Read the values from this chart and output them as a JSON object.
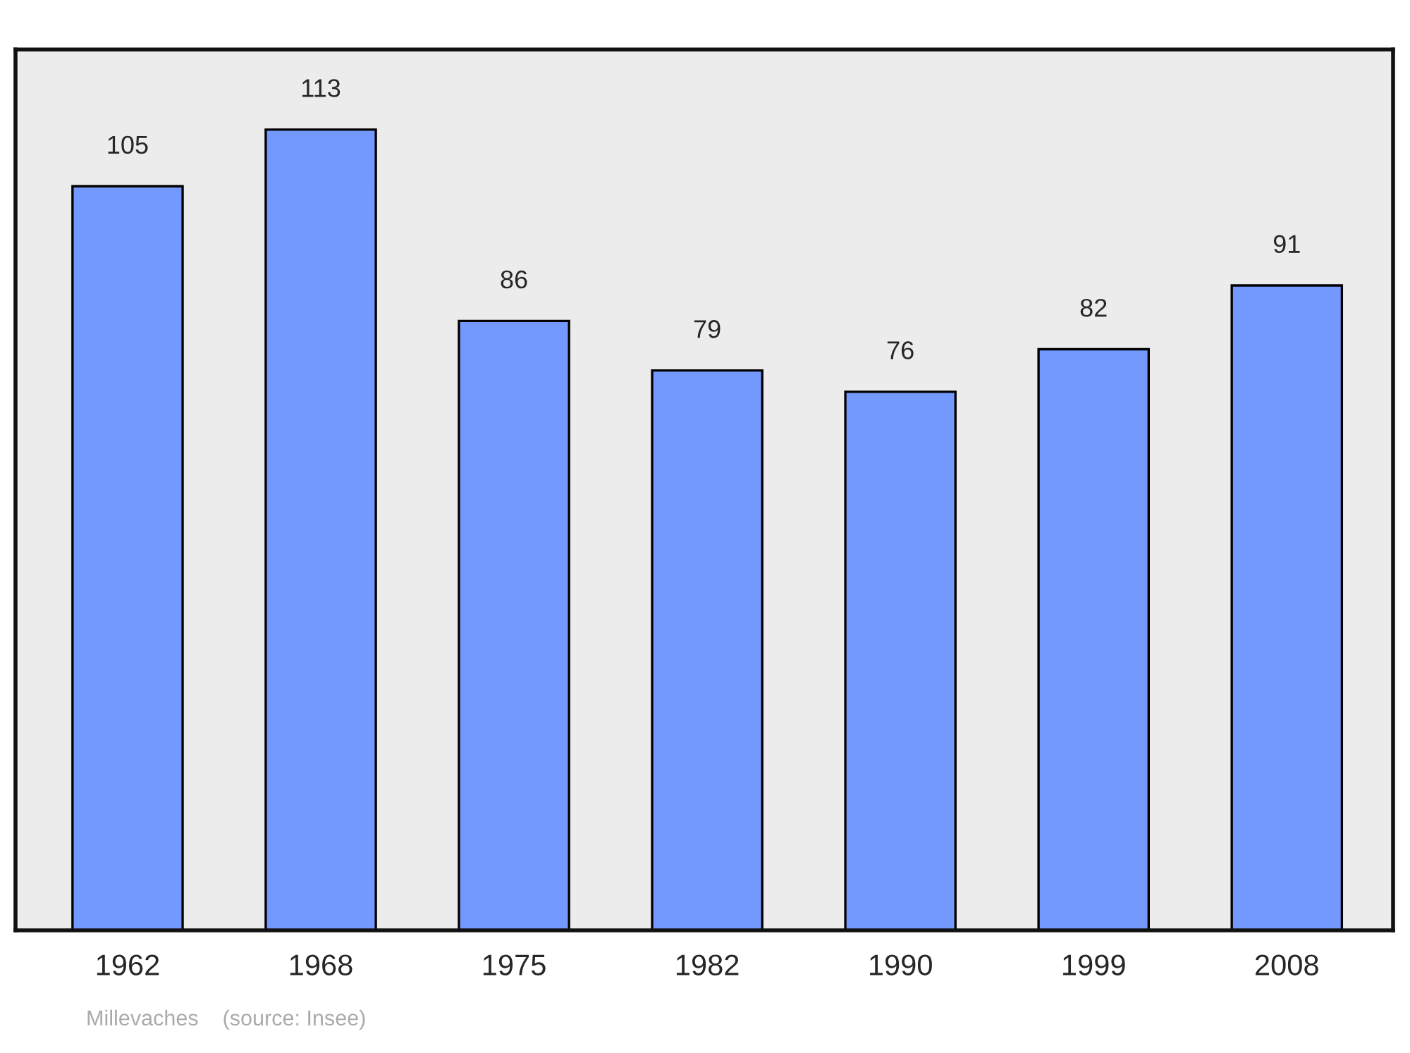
{
  "chart_data": {
    "type": "bar",
    "categories": [
      "1962",
      "1968",
      "1975",
      "1982",
      "1990",
      "1999",
      "2008"
    ],
    "values": [
      105,
      113,
      86,
      79,
      76,
      82,
      91
    ],
    "color": "#7399ff",
    "data_labels": true,
    "tick_labels": "x",
    "annotations": [
      "Millevaches    (source: Insee)"
    ]
  }
}
